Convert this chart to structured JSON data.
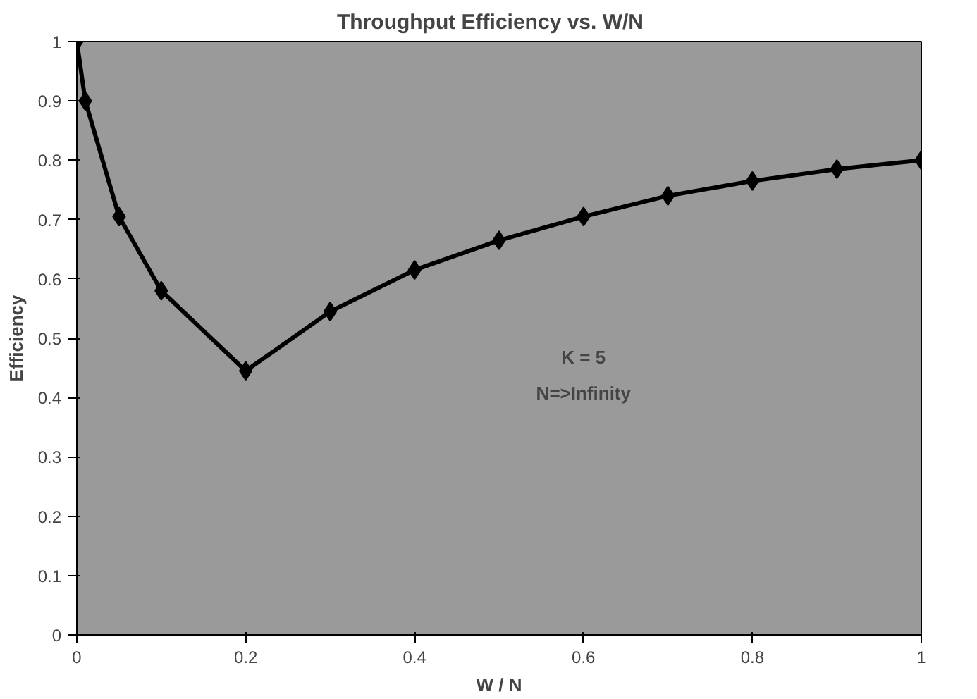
{
  "chart_data": {
    "type": "line",
    "title": "Throughput  Efficiency  vs.  W/N",
    "xlabel": "W / N",
    "ylabel": "Efficiency",
    "annotations": [
      "K = 5",
      "N=>Infinity"
    ],
    "x": [
      0,
      0.01,
      0.05,
      0.1,
      0.2,
      0.3,
      0.4,
      0.5,
      0.6,
      0.7,
      0.8,
      0.9,
      1.0
    ],
    "series": [
      {
        "color": "#000000",
        "values": [
          1.0,
          0.9,
          0.705,
          0.58,
          0.445,
          0.545,
          0.615,
          0.665,
          0.705,
          0.74,
          0.765,
          0.785,
          0.8
        ]
      }
    ],
    "xlim": [
      0,
      1
    ],
    "ylim": [
      0,
      1
    ],
    "xticks": [
      0,
      0.2,
      0.4,
      0.6,
      0.8,
      1
    ],
    "yticks": [
      0,
      0.1,
      0.2,
      0.3,
      0.4,
      0.5,
      0.6,
      0.7,
      0.8,
      0.9,
      1
    ],
    "grid": false,
    "marker": "diamond",
    "line_style": "solid"
  }
}
